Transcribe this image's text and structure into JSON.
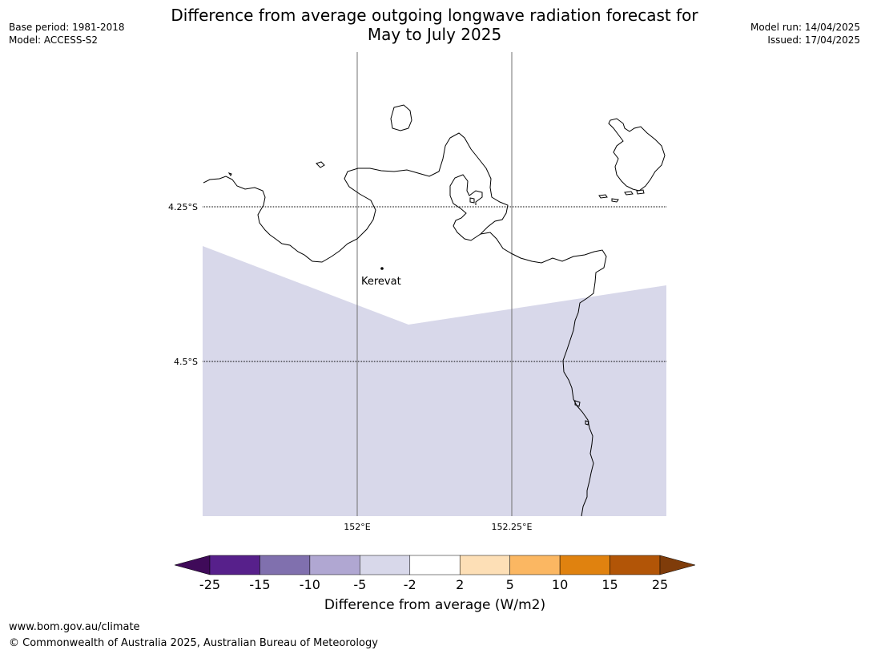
{
  "header": {
    "base_period": "Base period: 1981-2018",
    "model": "Model: ACCESS-S2",
    "model_run": "Model run: 14/04/2025",
    "issued": "Issued: 17/04/2025",
    "title_line1": "Difference from average outgoing longwave radiation forecast for",
    "title_line2": "May to July 2025"
  },
  "map": {
    "lat_labels": [
      "4.25°S",
      "4.5°S"
    ],
    "lon_labels": [
      "152°E",
      "152.25°E"
    ],
    "place": "Kerevat",
    "land_color": "#ffffff",
    "coast_color": "#000000",
    "shading_color": "#d8d8ea"
  },
  "colorbar": {
    "ticks": [
      "-25",
      "-15",
      "-10",
      "-5",
      "-2",
      "2",
      "5",
      "10",
      "15",
      "25"
    ],
    "colors": [
      "#3f0a59",
      "#57208b",
      "#8070ae",
      "#b0a7d2",
      "#d8d8ea",
      "#ffffff",
      "#fddfb6",
      "#fbb762",
      "#e0820f",
      "#b25507",
      "#7f3c0a"
    ],
    "label": "Difference from average (W/m2)"
  },
  "footer": {
    "url": "www.bom.gov.au/climate",
    "copyright": "© Commonwealth of Australia 2025, Australian Bureau of Meteorology"
  }
}
